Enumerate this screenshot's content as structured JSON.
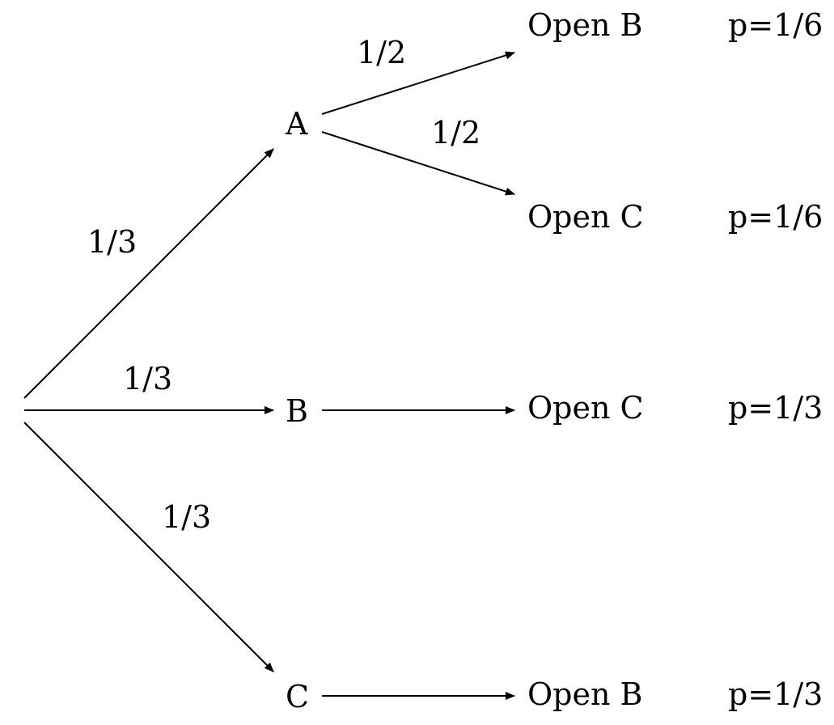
{
  "diagram": {
    "type": "probability-tree",
    "root_edges": [
      {
        "target": "A",
        "probability": "1/3"
      },
      {
        "target": "B",
        "probability": "1/3"
      },
      {
        "target": "C",
        "probability": "1/3"
      }
    ],
    "nodes": {
      "A": "A",
      "B": "B",
      "C": "C"
    },
    "branches": [
      {
        "from": "A",
        "probability": "1/2",
        "outcome": "Open B",
        "p": "p=1/6"
      },
      {
        "from": "A",
        "probability": "1/2",
        "outcome": "Open C",
        "p": "p=1/6"
      },
      {
        "from": "B",
        "probability": "",
        "outcome": "Open C",
        "p": "p=1/3"
      },
      {
        "from": "C",
        "probability": "",
        "outcome": "Open B",
        "p": "p=1/3"
      }
    ]
  }
}
